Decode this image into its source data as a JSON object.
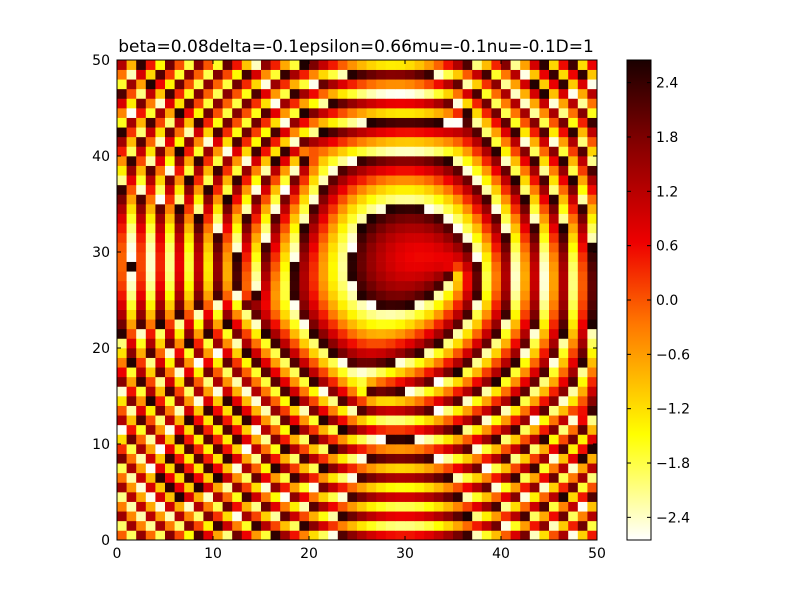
{
  "chart_data": {
    "type": "heatmap",
    "title": "beta=0.08delta=-0.1epsilon=0.66mu=-0.1nu=-0.1D=1",
    "xlabel": "",
    "ylabel": "",
    "xlim": [
      0,
      50
    ],
    "ylim": [
      0,
      50
    ],
    "x_ticks": [
      "0",
      "10",
      "20",
      "30",
      "40",
      "50"
    ],
    "y_ticks": [
      "0",
      "10",
      "20",
      "30",
      "40",
      "50"
    ],
    "grid_size": [
      50,
      50
    ],
    "colormap": "hot_r",
    "colormap_stops": [
      "#ffffff",
      "#ffff00",
      "#ff7700",
      "#ee0000",
      "#880000",
      "#1a0000"
    ],
    "value_range": [
      -2.65,
      2.65
    ],
    "colorbar_ticks": [
      "2.4",
      "1.8",
      "1.2",
      "0.6",
      "0.0",
      "−0.6",
      "−1.2",
      "−1.8",
      "−2.4"
    ],
    "colorbar_values": [
      2.4,
      1.8,
      1.2,
      0.6,
      0.0,
      -0.6,
      -1.2,
      -1.8,
      -2.4
    ],
    "grid": false,
    "legend": "colorbar-right"
  }
}
